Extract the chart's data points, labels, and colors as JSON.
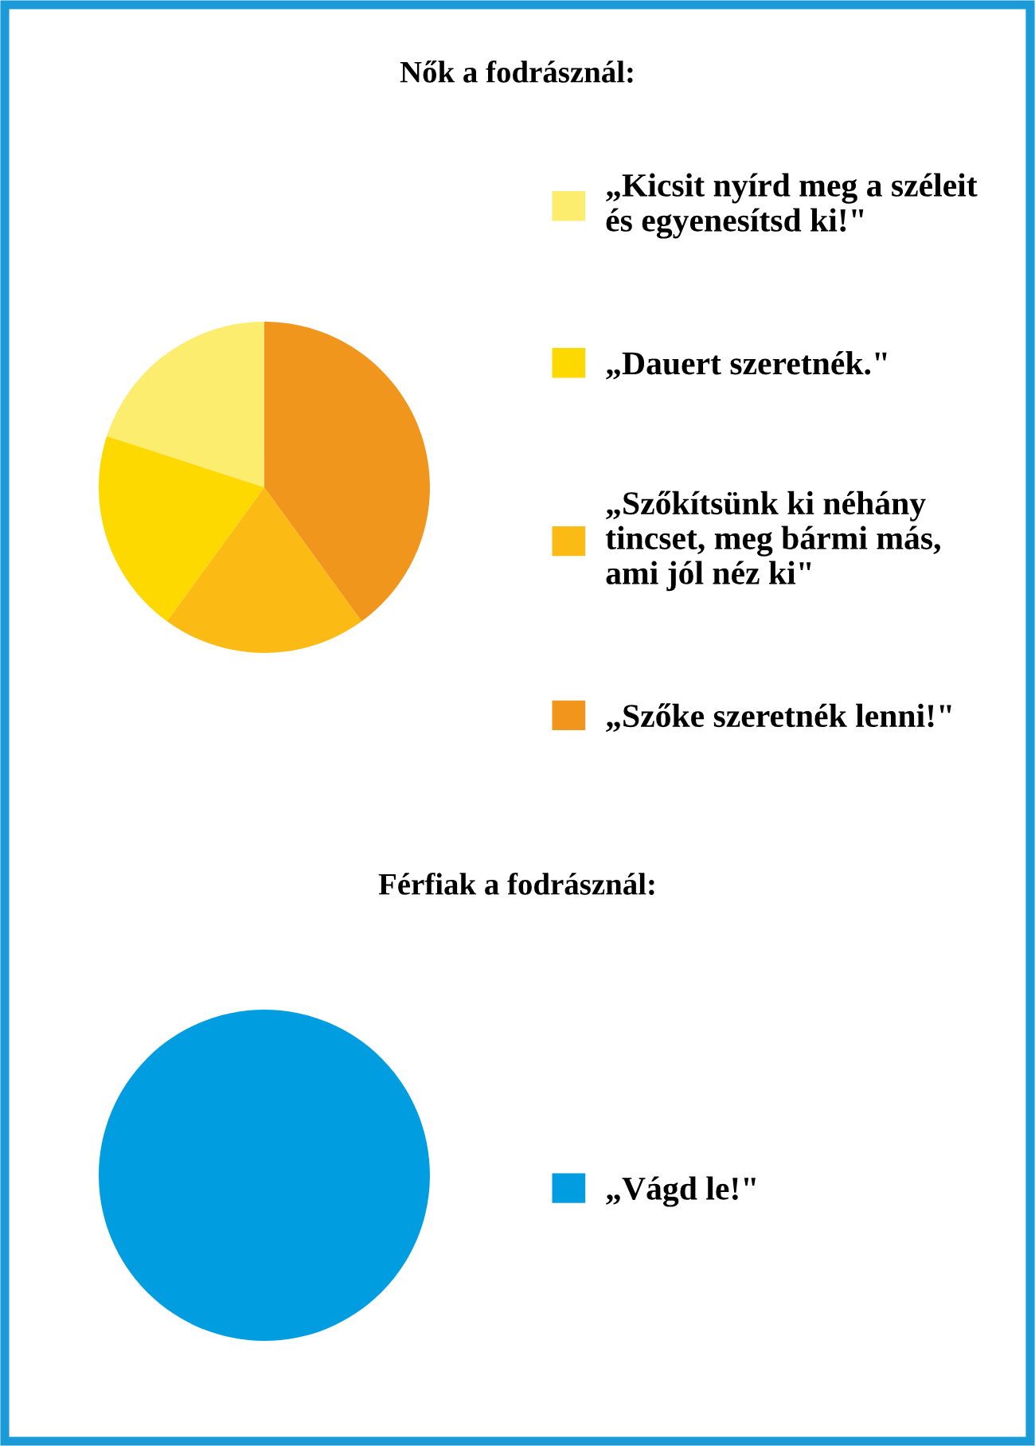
{
  "chart_data": [
    {
      "type": "pie",
      "title": "Nők a fodrásznál:",
      "categories": [
        "„Kicsit nyírd meg a széleit\nés egyenesítsd ki!\"",
        "„Dauert szeretnék.\"",
        "„Szőkítsünk ki néhány\ntincset, meg bármi más,\nami jól néz ki\"",
        "„Szőke szeretnék lenni!\""
      ],
      "values": [
        20,
        20,
        20,
        40
      ],
      "colors": [
        "#fded6f",
        "#fdd900",
        "#fbbb14",
        "#f0961d"
      ],
      "legend": "right"
    },
    {
      "type": "pie",
      "title": "Férfiak a fodrásznál:",
      "categories": [
        "„Vágd le!\""
      ],
      "values": [
        100
      ],
      "colors": [
        "#009ee0"
      ],
      "legend": "right"
    }
  ]
}
